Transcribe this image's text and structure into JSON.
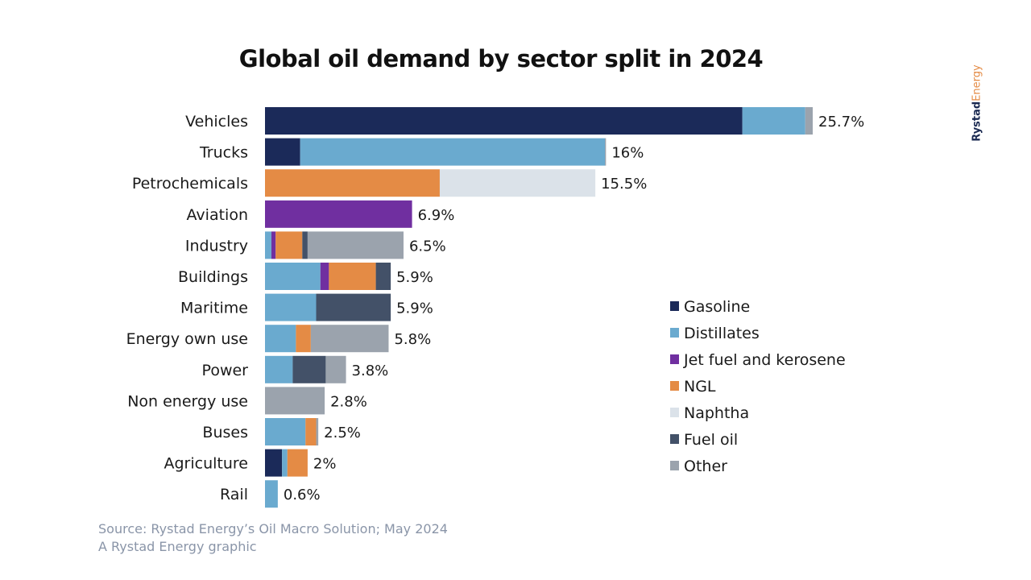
{
  "brand": {
    "part1": "Rystad",
    "part2": "Energy"
  },
  "footer": {
    "source": "Source: Rystad Energy’s Oil Macro Solution; May 2024",
    "credit": "A Rystad Energy graphic"
  },
  "chart_data": {
    "type": "bar",
    "orientation": "horizontal",
    "stacked": true,
    "title": "Global oil demand by sector split in 2024",
    "xlabel": "",
    "ylabel": "",
    "unit": "%",
    "xlim": [
      0,
      25.7
    ],
    "grid": false,
    "legend_position": "right",
    "categories": [
      "Vehicles",
      "Trucks",
      "Petrochemicals",
      "Aviation",
      "Industry",
      "Buildings",
      "Maritime",
      "Energy own use",
      "Power",
      "Non energy use",
      "Buses",
      "Agriculture",
      "Rail"
    ],
    "totals": [
      25.7,
      16,
      15.5,
      6.9,
      6.5,
      5.9,
      5.9,
      5.8,
      3.8,
      2.8,
      2.5,
      2,
      0.6
    ],
    "total_labels": [
      "25.7%",
      "16%",
      "15.5%",
      "6.9%",
      "6.5%",
      "5.9%",
      "5.9%",
      "5.8%",
      "3.8%",
      "2.8%",
      "2.5%",
      "2%",
      "0.6%"
    ],
    "series": [
      {
        "name": "Gasoline",
        "color": "#1b2a59",
        "values": [
          22.4,
          1.65,
          0,
          0,
          0,
          0,
          0,
          0,
          0,
          0,
          0,
          0.8,
          0
        ]
      },
      {
        "name": "Distillates",
        "color": "#6aaacf",
        "values": [
          2.95,
          14.3,
          0,
          0,
          0.3,
          2.6,
          2.4,
          1.45,
          1.3,
          0,
          1.9,
          0.25,
          0.6
        ]
      },
      {
        "name": "Jet fuel and kerosene",
        "color": "#702fa0",
        "values": [
          0,
          0,
          0,
          6.9,
          0.2,
          0.4,
          0,
          0,
          0,
          0,
          0,
          0,
          0
        ]
      },
      {
        "name": "NGL",
        "color": "#e48b45",
        "values": [
          0,
          0,
          8.2,
          0,
          1.25,
          2.2,
          0,
          0.7,
          0,
          0,
          0.5,
          0.95,
          0
        ]
      },
      {
        "name": "Naphtha",
        "color": "#dbe2e9",
        "values": [
          0,
          0,
          7.3,
          0,
          0,
          0,
          0,
          0,
          0,
          0,
          0,
          0,
          0
        ]
      },
      {
        "name": "Fuel oil",
        "color": "#435168",
        "values": [
          0,
          0,
          0,
          0,
          0.25,
          0.7,
          3.5,
          0,
          1.55,
          0,
          0,
          0,
          0
        ]
      },
      {
        "name": "Other",
        "color": "#9ba3ad",
        "values": [
          0.35,
          0.05,
          0,
          0,
          4.5,
          0,
          0,
          3.65,
          0.95,
          2.8,
          0.1,
          0,
          0
        ]
      }
    ]
  }
}
